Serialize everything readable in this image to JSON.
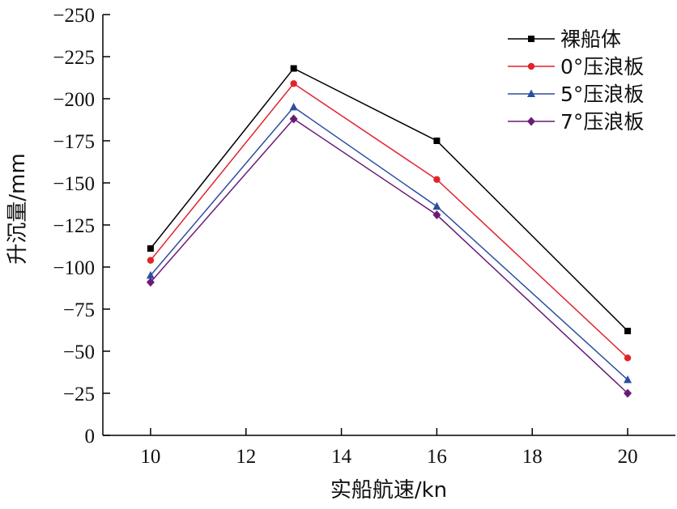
{
  "chart_data": {
    "type": "line",
    "xlabel": "实船航速/kn",
    "ylabel": "升沉量/mm",
    "xlim": [
      9,
      21
    ],
    "ylim": [
      0,
      -250
    ],
    "y_reversed": true,
    "x_ticks": [
      10,
      12,
      14,
      16,
      18,
      20
    ],
    "x_tick_labels": [
      "10",
      "12",
      "14",
      "16",
      "18",
      "20"
    ],
    "y_ticks": [
      0,
      -25,
      -50,
      -75,
      -100,
      -125,
      -150,
      -175,
      -200,
      -225,
      -250
    ],
    "y_tick_labels": [
      "0",
      "−25",
      "−50",
      "−75",
      "−100",
      "−125",
      "−150",
      "−175",
      "−200",
      "−225",
      "−250"
    ],
    "grid": false,
    "legend_position": "top-right",
    "x": [
      10,
      13,
      16,
      20
    ],
    "series": [
      {
        "name": "裸船体",
        "values": [
          -111,
          -218,
          -175,
          -62
        ],
        "color": "#000000",
        "marker": "square"
      },
      {
        "name": "0°压浪板",
        "values": [
          -104,
          -209,
          -152,
          -46
        ],
        "color": "#e0242a",
        "marker": "circle"
      },
      {
        "name": "5°压浪板",
        "values": [
          -95,
          -195,
          -136,
          -33
        ],
        "color": "#2a4ea0",
        "marker": "triangle"
      },
      {
        "name": "7°压浪板",
        "values": [
          -91,
          -188,
          -131,
          -25
        ],
        "color": "#6a1b78",
        "marker": "diamond"
      }
    ]
  }
}
